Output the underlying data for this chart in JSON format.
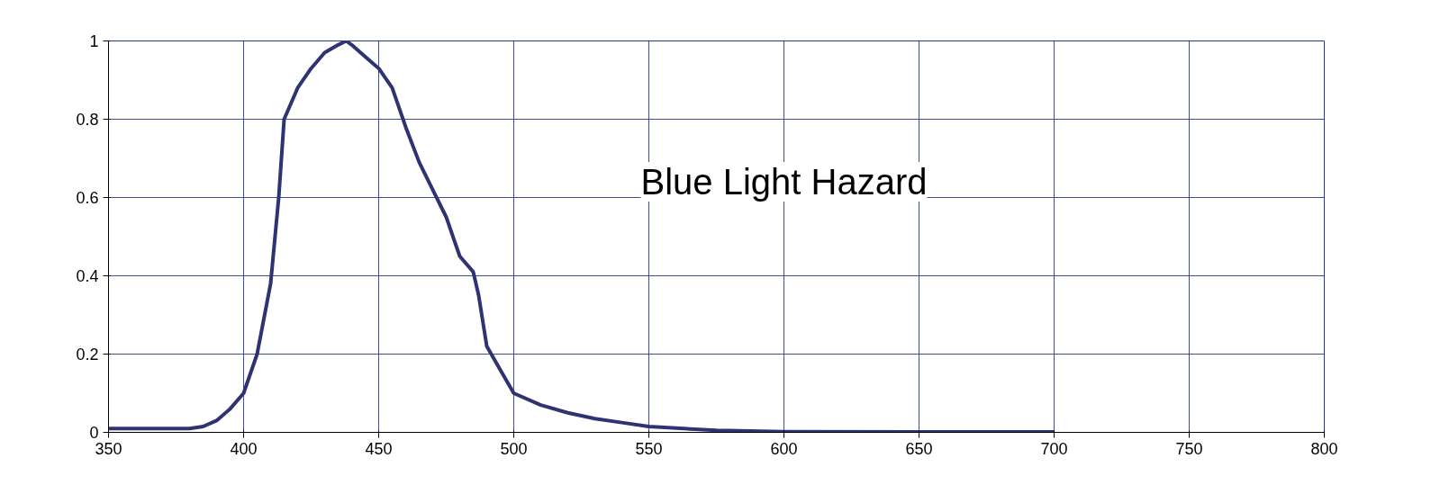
{
  "chart_data": {
    "type": "line",
    "annotations": [
      "Blue Light Hazard"
    ],
    "x": [
      350,
      360,
      370,
      380,
      385,
      390,
      395,
      400,
      405,
      410,
      413,
      415,
      420,
      425,
      430,
      435,
      438,
      440,
      445,
      450,
      455,
      460,
      465,
      470,
      475,
      480,
      485,
      487,
      490,
      495,
      500,
      510,
      520,
      530,
      540,
      550,
      575,
      600,
      650,
      700
    ],
    "series": [
      {
        "color": "#2e3472",
        "values": [
          0.01,
          0.01,
          0.01,
          0.01,
          0.015,
          0.03,
          0.06,
          0.1,
          0.2,
          0.38,
          0.6,
          0.8,
          0.88,
          0.93,
          0.97,
          0.99,
          1.0,
          0.99,
          0.96,
          0.93,
          0.88,
          0.78,
          0.69,
          0.62,
          0.55,
          0.45,
          0.41,
          0.35,
          0.22,
          0.16,
          0.1,
          0.07,
          0.05,
          0.035,
          0.025,
          0.015,
          0.005,
          0.002,
          0.001,
          0.001
        ]
      }
    ],
    "xlim": [
      350,
      800
    ],
    "ylim": [
      0,
      1
    ],
    "xticks": [
      350,
      400,
      450,
      500,
      550,
      600,
      650,
      700,
      750,
      800
    ],
    "yticks": [
      0,
      0.2,
      0.4,
      0.6,
      0.8,
      1
    ],
    "grid": true,
    "marker": "none",
    "line_style": "solid"
  }
}
